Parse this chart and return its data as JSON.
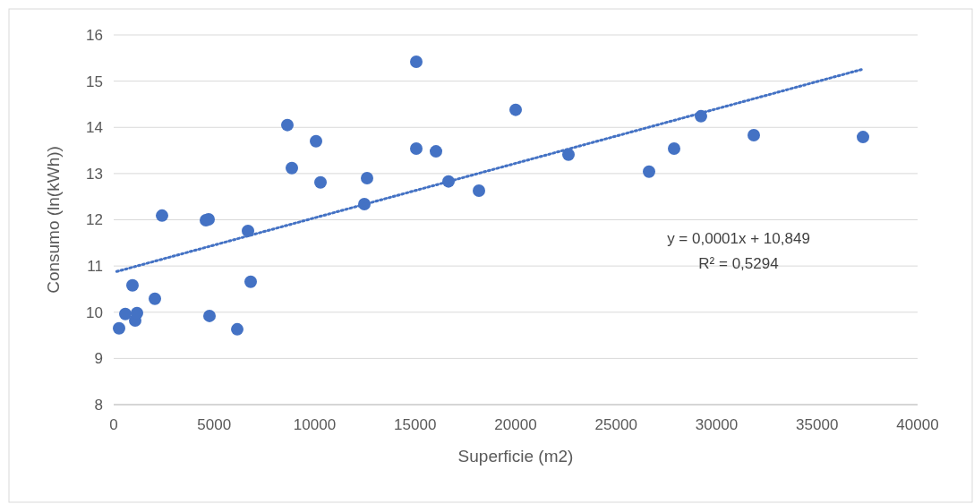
{
  "chart_data": {
    "type": "scatter",
    "xlabel": "Superficie (m2)",
    "ylabel": "Consumo (ln(kWh))",
    "xlim": [
      0,
      40000
    ],
    "xticks": [
      0,
      5000,
      10000,
      15000,
      20000,
      25000,
      30000,
      35000,
      40000
    ],
    "ylim": [
      8,
      16
    ],
    "yticks": [
      8,
      9,
      10,
      11,
      12,
      13,
      14,
      15,
      16
    ],
    "grid": "y",
    "annotations": [
      "y = 0,0001x + 10,849",
      "R² = 0,5294"
    ],
    "series": [
      {
        "marker": "circle",
        "color": "#4472c4",
        "x": [
          267,
          579,
          935,
          1069,
          1158,
          2049,
          2405,
          4588,
          4722,
          4766,
          6147,
          6682,
          6815,
          8641,
          8864,
          10067,
          10290,
          12472,
          12606,
          15056,
          15056,
          16036,
          16659,
          18174,
          20000,
          22628,
          26637,
          27884,
          29220,
          31849,
          37283
        ],
        "values": [
          9.65,
          9.96,
          10.58,
          9.82,
          9.98,
          10.29,
          12.09,
          11.99,
          12.01,
          9.92,
          9.63,
          11.76,
          10.66,
          14.05,
          13.12,
          13.7,
          12.81,
          12.34,
          12.9,
          15.42,
          13.54,
          13.48,
          12.83,
          12.63,
          14.38,
          13.41,
          13.04,
          13.54,
          14.24,
          13.83,
          13.79
        ]
      },
      {
        "type": "line",
        "marker": "none",
        "color": "#4472c4",
        "line_style": "dotted",
        "x": [
          150,
          37200
        ],
        "values": [
          10.88,
          15.25
        ]
      }
    ]
  }
}
